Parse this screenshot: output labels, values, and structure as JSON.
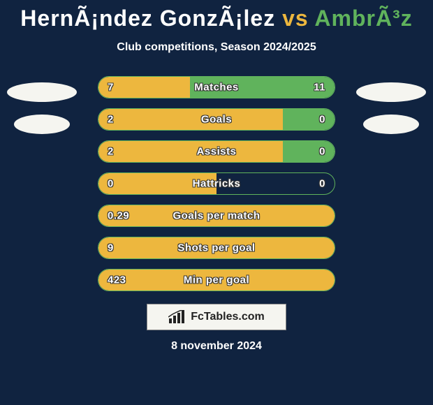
{
  "header": {
    "player1": "HernÃ¡ndez GonzÃ¡lez",
    "vs": "vs",
    "player2": "AmbrÃ³z",
    "subtitle": "Club competitions, Season 2024/2025"
  },
  "colors": {
    "background": "#102340",
    "player1": "#edb73e",
    "player2": "#60b35c",
    "text": "#ffffff",
    "avatar": "#f5f5f0"
  },
  "chart": {
    "type": "bar-comparison",
    "track_width": 340,
    "track_height": 32,
    "border_radius": 16,
    "rows": [
      {
        "label": "Matches",
        "left_val": "7",
        "right_val": "11",
        "left_pct": 38.9,
        "right_pct": 61.1
      },
      {
        "label": "Goals",
        "left_val": "2",
        "right_val": "0",
        "left_pct": 78.0,
        "right_pct": 22.0
      },
      {
        "label": "Assists",
        "left_val": "2",
        "right_val": "0",
        "left_pct": 78.0,
        "right_pct": 22.0
      },
      {
        "label": "Hattricks",
        "left_val": "0",
        "right_val": "0",
        "left_pct": 50.0,
        "right_pct": 0.0
      },
      {
        "label": "Goals per match",
        "left_val": "0.29",
        "right_val": "",
        "left_pct": 100.0,
        "right_pct": 0.0
      },
      {
        "label": "Shots per goal",
        "left_val": "9",
        "right_val": "",
        "left_pct": 100.0,
        "right_pct": 0.0
      },
      {
        "label": "Min per goal",
        "left_val": "423",
        "right_val": "",
        "left_pct": 100.0,
        "right_pct": 0.0
      }
    ]
  },
  "footer": {
    "logo_text": "FcTables.com",
    "date": "8 november 2024"
  }
}
